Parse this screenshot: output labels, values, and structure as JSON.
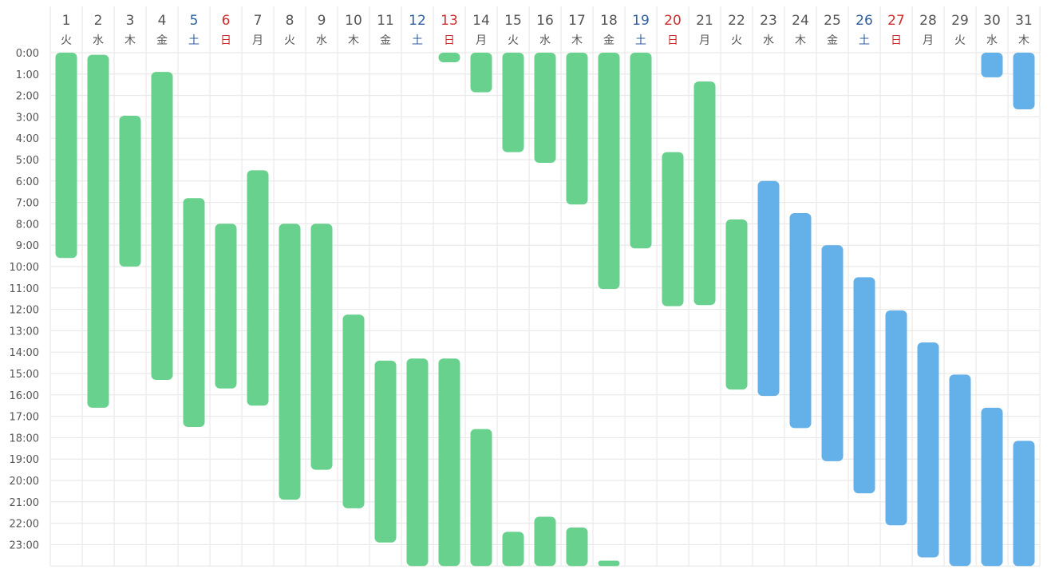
{
  "chart_data": {
    "type": "bar",
    "grid": true,
    "colors": {
      "green": "#68d18d",
      "blue": "#63b1e8",
      "weekday": "#555555",
      "saturday": "#2e5fa3",
      "sunday": "#cc2e2e",
      "grid": "#e6e6e6"
    },
    "days": [
      {
        "d": "1",
        "w": "火",
        "kind": "weekday"
      },
      {
        "d": "2",
        "w": "水",
        "kind": "weekday"
      },
      {
        "d": "3",
        "w": "木",
        "kind": "weekday"
      },
      {
        "d": "4",
        "w": "金",
        "kind": "weekday"
      },
      {
        "d": "5",
        "w": "土",
        "kind": "saturday"
      },
      {
        "d": "6",
        "w": "日",
        "kind": "sunday"
      },
      {
        "d": "7",
        "w": "月",
        "kind": "weekday"
      },
      {
        "d": "8",
        "w": "火",
        "kind": "weekday"
      },
      {
        "d": "9",
        "w": "水",
        "kind": "weekday"
      },
      {
        "d": "10",
        "w": "木",
        "kind": "weekday"
      },
      {
        "d": "11",
        "w": "金",
        "kind": "weekday"
      },
      {
        "d": "12",
        "w": "土",
        "kind": "saturday"
      },
      {
        "d": "13",
        "w": "日",
        "kind": "sunday"
      },
      {
        "d": "14",
        "w": "月",
        "kind": "weekday"
      },
      {
        "d": "15",
        "w": "火",
        "kind": "weekday"
      },
      {
        "d": "16",
        "w": "水",
        "kind": "weekday"
      },
      {
        "d": "17",
        "w": "木",
        "kind": "weekday"
      },
      {
        "d": "18",
        "w": "金",
        "kind": "weekday"
      },
      {
        "d": "19",
        "w": "土",
        "kind": "saturday"
      },
      {
        "d": "20",
        "w": "日",
        "kind": "sunday"
      },
      {
        "d": "21",
        "w": "月",
        "kind": "weekday"
      },
      {
        "d": "22",
        "w": "火",
        "kind": "weekday"
      },
      {
        "d": "23",
        "w": "水",
        "kind": "weekday"
      },
      {
        "d": "24",
        "w": "木",
        "kind": "weekday"
      },
      {
        "d": "25",
        "w": "金",
        "kind": "weekday"
      },
      {
        "d": "26",
        "w": "土",
        "kind": "saturday"
      },
      {
        "d": "27",
        "w": "日",
        "kind": "sunday"
      },
      {
        "d": "28",
        "w": "月",
        "kind": "weekday"
      },
      {
        "d": "29",
        "w": "火",
        "kind": "weekday"
      },
      {
        "d": "30",
        "w": "水",
        "kind": "weekday"
      },
      {
        "d": "31",
        "w": "木",
        "kind": "weekday"
      }
    ],
    "hours": [
      "0:00",
      "1:00",
      "2:00",
      "3:00",
      "4:00",
      "5:00",
      "6:00",
      "7:00",
      "8:00",
      "9:00",
      "10:00",
      "11:00",
      "12:00",
      "13:00",
      "14:00",
      "15:00",
      "16:00",
      "17:00",
      "18:00",
      "19:00",
      "20:00",
      "21:00",
      "22:00",
      "23:00"
    ],
    "ylim": [
      0,
      24
    ],
    "intervals": [
      {
        "day": 1,
        "start": 0.0,
        "end": 9.6,
        "color": "green"
      },
      {
        "day": 2,
        "start": 0.1,
        "end": 16.6,
        "color": "green"
      },
      {
        "day": 3,
        "start": 2.95,
        "end": 10.0,
        "color": "green"
      },
      {
        "day": 4,
        "start": 0.9,
        "end": 15.3,
        "color": "green"
      },
      {
        "day": 5,
        "start": 6.8,
        "end": 17.5,
        "color": "green"
      },
      {
        "day": 6,
        "start": 8.0,
        "end": 15.7,
        "color": "green"
      },
      {
        "day": 7,
        "start": 5.5,
        "end": 16.5,
        "color": "green"
      },
      {
        "day": 8,
        "start": 8.0,
        "end": 20.9,
        "color": "green"
      },
      {
        "day": 9,
        "start": 8.0,
        "end": 19.5,
        "color": "green"
      },
      {
        "day": 10,
        "start": 12.25,
        "end": 21.3,
        "color": "green"
      },
      {
        "day": 11,
        "start": 14.4,
        "end": 22.9,
        "color": "green"
      },
      {
        "day": 12,
        "start": 14.3,
        "end": 24.0,
        "color": "green"
      },
      {
        "day": 13,
        "start": 14.3,
        "end": 24.0,
        "color": "green"
      },
      {
        "day": 13,
        "start": 0.0,
        "end": 0.45,
        "color": "green"
      },
      {
        "day": 14,
        "start": 0.0,
        "end": 1.85,
        "color": "green"
      },
      {
        "day": 14,
        "start": 17.6,
        "end": 24.0,
        "color": "green"
      },
      {
        "day": 15,
        "start": 0.0,
        "end": 4.65,
        "color": "green"
      },
      {
        "day": 15,
        "start": 22.4,
        "end": 24.0,
        "color": "green"
      },
      {
        "day": 16,
        "start": 0.0,
        "end": 5.15,
        "color": "green"
      },
      {
        "day": 16,
        "start": 21.7,
        "end": 24.0,
        "color": "green"
      },
      {
        "day": 17,
        "start": 0.0,
        "end": 7.1,
        "color": "green"
      },
      {
        "day": 17,
        "start": 22.2,
        "end": 24.0,
        "color": "green"
      },
      {
        "day": 18,
        "start": 0.0,
        "end": 11.05,
        "color": "green"
      },
      {
        "day": 18,
        "start": 23.75,
        "end": 24.0,
        "color": "green"
      },
      {
        "day": 19,
        "start": 0.0,
        "end": 9.15,
        "color": "green"
      },
      {
        "day": 20,
        "start": 4.65,
        "end": 11.85,
        "color": "green"
      },
      {
        "day": 21,
        "start": 1.35,
        "end": 11.8,
        "color": "green"
      },
      {
        "day": 22,
        "start": 7.8,
        "end": 15.75,
        "color": "green"
      },
      {
        "day": 23,
        "start": 6.0,
        "end": 16.05,
        "color": "blue"
      },
      {
        "day": 24,
        "start": 7.5,
        "end": 17.55,
        "color": "blue"
      },
      {
        "day": 25,
        "start": 9.0,
        "end": 19.1,
        "color": "blue"
      },
      {
        "day": 26,
        "start": 10.5,
        "end": 20.6,
        "color": "blue"
      },
      {
        "day": 27,
        "start": 12.05,
        "end": 22.1,
        "color": "blue"
      },
      {
        "day": 28,
        "start": 13.55,
        "end": 23.6,
        "color": "blue"
      },
      {
        "day": 29,
        "start": 15.05,
        "end": 24.0,
        "color": "blue"
      },
      {
        "day": 30,
        "start": 0.0,
        "end": 1.15,
        "color": "blue"
      },
      {
        "day": 30,
        "start": 16.6,
        "end": 24.0,
        "color": "blue"
      },
      {
        "day": 31,
        "start": 0.0,
        "end": 2.65,
        "color": "blue"
      },
      {
        "day": 31,
        "start": 18.15,
        "end": 24.0,
        "color": "blue"
      }
    ]
  }
}
